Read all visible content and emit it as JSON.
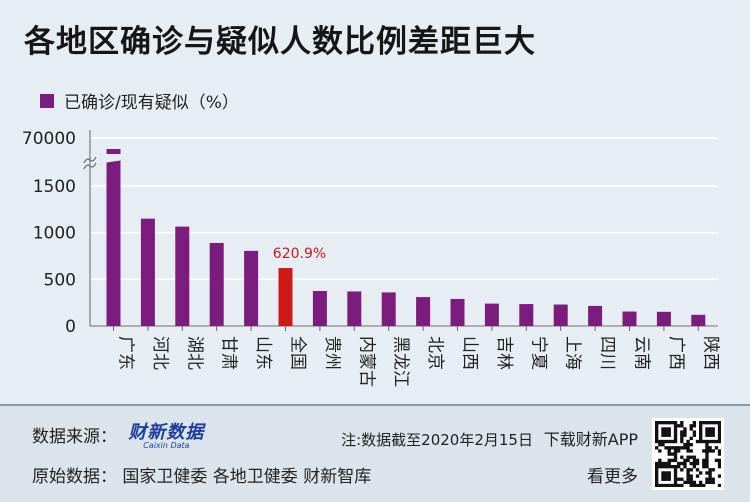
{
  "title": "各地区确诊与疑似人数比例差距巨大",
  "legend": {
    "label": "已确诊/现有疑似（%）"
  },
  "colors": {
    "bar": "#7b1c7e",
    "highlight": "#cc1a16",
    "highlight_label": "#c8191c",
    "background": "#e7eef3"
  },
  "chart_data": {
    "type": "bar",
    "series": [
      {
        "name": "已确诊/现有疑似（%）"
      }
    ],
    "categories": [
      "广东",
      "河北",
      "湖北",
      "甘肃",
      "山东",
      "全国",
      "贵州",
      "内蒙古",
      "黑龙江",
      "北京",
      "山西",
      "吉林",
      "宁夏",
      "上海",
      "四川",
      "云南",
      "广西",
      "陕西"
    ],
    "values": [
      69000,
      1150,
      1065,
      890,
      805,
      620.9,
      375,
      370,
      360,
      310,
      290,
      240,
      235,
      230,
      215,
      155,
      152,
      120
    ],
    "highlight_index": 5,
    "highlight_label": "620.9%",
    "ylim": [
      0,
      1900
    ],
    "axis_break": {
      "below": 1700,
      "upper_tick": "70000"
    },
    "y_ticks": [
      0,
      500,
      1000,
      1500
    ],
    "y_tick_labels": [
      "0",
      "500",
      "1000",
      "1500",
      "70000"
    ],
    "grid": true,
    "legend_position": "top-left"
  },
  "footer": {
    "source_label": "数据来源：",
    "logo_text": "财新数据",
    "logo_sub": "Caixin Data",
    "note": "注:数据截至2020年2月15日",
    "download": "下载财新APP",
    "original_label": "原始数据：",
    "original_sources": "国家卫健委 各地卫健委 财新智库",
    "more": "看更多",
    "qr_icon": "qr-code-icon"
  }
}
